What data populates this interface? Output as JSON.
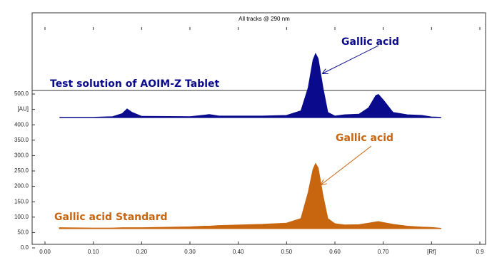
{
  "chart_data": {
    "type": "area",
    "title": "All tracks @ 290 nm",
    "x": [
      0.03,
      0.1,
      0.14,
      0.16,
      0.17,
      0.18,
      0.2,
      0.3,
      0.33,
      0.34,
      0.36,
      0.45,
      0.5,
      0.53,
      0.545,
      0.555,
      0.56,
      0.565,
      0.575,
      0.585,
      0.6,
      0.62,
      0.65,
      0.67,
      0.685,
      0.69,
      0.7,
      0.72,
      0.75,
      0.78,
      0.8,
      0.82
    ],
    "series": [
      {
        "name": "Test solution of AOIM-Z Tablet",
        "color": "#0a0a8c",
        "values": [
          424,
          424,
          426,
          436,
          451,
          440,
          427,
          426,
          431,
          433,
          428,
          428,
          430,
          445,
          520,
          610,
          630,
          615,
          520,
          440,
          428,
          432,
          434,
          455,
          495,
          498,
          480,
          440,
          432,
          430,
          425,
          424
        ]
      },
      {
        "name": "Gallic acid Standard",
        "color": "#c8650f",
        "values": [
          65,
          64,
          64,
          65,
          65,
          65,
          65,
          68,
          70,
          70,
          72,
          76,
          80,
          95,
          180,
          255,
          273,
          260,
          170,
          95,
          78,
          74,
          75,
          80,
          84,
          85,
          82,
          76,
          70,
          67,
          66,
          63
        ]
      }
    ],
    "annotations": [
      "Gallic acid",
      "Gallic acid"
    ],
    "xlim": [
      0,
      0.9
    ],
    "xticks": [
      {
        "value": 0,
        "label": "0.00"
      },
      {
        "value": 0.1,
        "label": "0.10"
      },
      {
        "value": 0.2,
        "label": "0.20"
      },
      {
        "value": 0.3,
        "label": "0.30"
      },
      {
        "value": 0.4,
        "label": "0.40"
      },
      {
        "value": 0.5,
        "label": "0.50"
      },
      {
        "value": 0.6,
        "label": "0.60"
      },
      {
        "value": 0.7,
        "label": "0.70"
      },
      {
        "value": 0.8,
        "label": "[Rf]"
      },
      {
        "value": 0.9,
        "label": "0.9"
      }
    ],
    "ylim": [
      0,
      760
    ],
    "yticks": [
      {
        "value": 0,
        "label": "0.0"
      },
      {
        "value": 50,
        "label": "50.0"
      },
      {
        "value": 100,
        "label": "100.0"
      },
      {
        "value": 150,
        "label": "150.0"
      },
      {
        "value": 200,
        "label": "200.0"
      },
      {
        "value": 250,
        "label": "250.0"
      },
      {
        "value": 300,
        "label": "300.0"
      },
      {
        "value": 350,
        "label": "350.0"
      },
      {
        "value": 400,
        "label": "400.0"
      },
      {
        "value": 450,
        "label": "[AU]"
      },
      {
        "value": 500,
        "label": "500.0"
      }
    ]
  }
}
